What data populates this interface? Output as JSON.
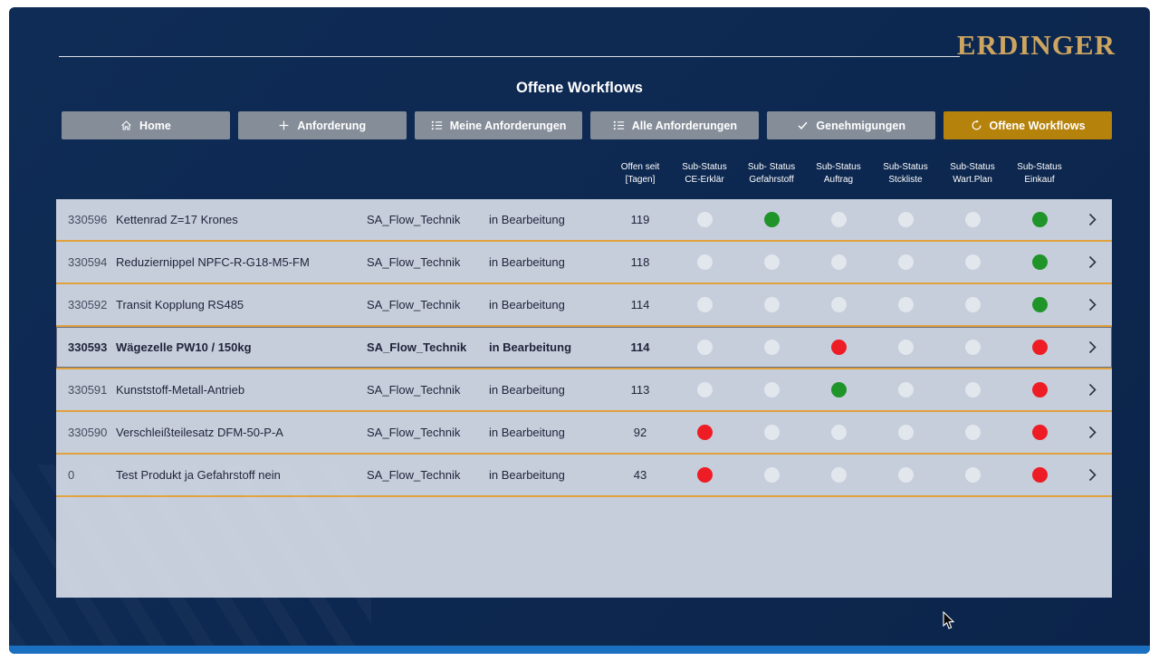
{
  "brand": {
    "name": "ERDINGER"
  },
  "title": "Offene Workflows",
  "nav": [
    {
      "label": "Home",
      "icon": "home-icon",
      "active": false
    },
    {
      "label": "Anforderung",
      "icon": "plus-icon",
      "active": false
    },
    {
      "label": "Meine Anforderungen",
      "icon": "list-icon",
      "active": false
    },
    {
      "label": "Alle Anforderungen",
      "icon": "list-icon",
      "active": false
    },
    {
      "label": "Genehmigungen",
      "icon": "check-icon",
      "active": false
    },
    {
      "label": "Offene Workflows",
      "icon": "refresh-icon",
      "active": true
    }
  ],
  "columns": [
    {
      "line1": "Offen seit",
      "line2": "[Tagen]"
    },
    {
      "line1": "Sub-Status",
      "line2": "CE-Erklär"
    },
    {
      "line1": "Sub- Status",
      "line2": "Gefahrstoff"
    },
    {
      "line1": "Sub-Status",
      "line2": "Auftrag"
    },
    {
      "line1": "Sub-Status",
      "line2": "Stckliste"
    },
    {
      "line1": "Sub-Status",
      "line2": "Wart.Plan"
    },
    {
      "line1": "Sub-Status",
      "line2": "Einkauf"
    }
  ],
  "rows": [
    {
      "id": "330596",
      "name": "Kettenrad Z=17 Krones",
      "flow": "SA_Flow_Technik",
      "status": "in Bearbeitung",
      "days": "119",
      "selected": false,
      "dots": [
        "inactive",
        "green",
        "inactive",
        "inactive",
        "inactive",
        "green"
      ]
    },
    {
      "id": "330594",
      "name": "Reduziernippel NPFC-R-G18-M5-FM",
      "flow": "SA_Flow_Technik",
      "status": "in Bearbeitung",
      "days": "118",
      "selected": false,
      "dots": [
        "inactive",
        "inactive",
        "inactive",
        "inactive",
        "inactive",
        "green"
      ]
    },
    {
      "id": "330592",
      "name": "Transit Kopplung RS485",
      "flow": "SA_Flow_Technik",
      "status": "in Bearbeitung",
      "days": "114",
      "selected": false,
      "dots": [
        "inactive",
        "inactive",
        "inactive",
        "inactive",
        "inactive",
        "green"
      ]
    },
    {
      "id": "330593",
      "name": "Wägezelle PW10 / 150kg",
      "flow": "SA_Flow_Technik",
      "status": "in Bearbeitung",
      "days": "114",
      "selected": true,
      "dots": [
        "inactive",
        "inactive",
        "red",
        "inactive",
        "inactive",
        "red"
      ]
    },
    {
      "id": "330591",
      "name": "Kunststoff-Metall-Antrieb",
      "flow": "SA_Flow_Technik",
      "status": "in Bearbeitung",
      "days": "113",
      "selected": false,
      "dots": [
        "inactive",
        "inactive",
        "green",
        "inactive",
        "inactive",
        "red"
      ]
    },
    {
      "id": "330590",
      "name": "Verschleißteilesatz DFM-50-P-A",
      "flow": "SA_Flow_Technik",
      "status": "in Bearbeitung",
      "days": "92",
      "selected": false,
      "dots": [
        "red",
        "inactive",
        "inactive",
        "inactive",
        "inactive",
        "red"
      ]
    },
    {
      "id": "0",
      "name": "Test Produkt ja Gefahrstoff nein",
      "flow": "SA_Flow_Technik",
      "status": "in Bearbeitung",
      "days": "43",
      "selected": false,
      "dots": [
        "red",
        "inactive",
        "inactive",
        "inactive",
        "inactive",
        "red"
      ]
    }
  ],
  "colors": {
    "accent": "#b5820b",
    "separator": "#e1a13c",
    "green": "#1f9428",
    "red": "#ee1c25",
    "inactive": "#e2e6ed"
  }
}
